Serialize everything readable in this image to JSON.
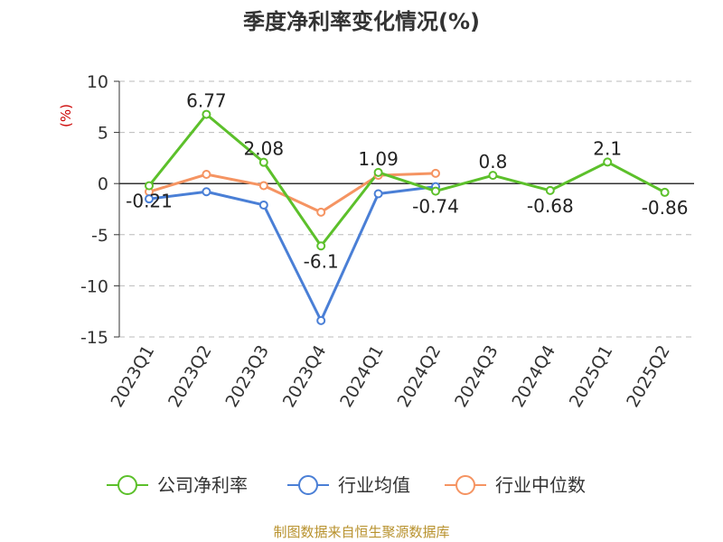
{
  "chart_data": {
    "type": "line",
    "title": "季度净利率变化情况(%)",
    "ylabel": "(%)",
    "xlabel": "",
    "ylim": [
      -15,
      10
    ],
    "yticks": [
      10,
      5,
      0,
      -5,
      -10,
      -15
    ],
    "categories": [
      "2023Q1",
      "2023Q2",
      "2023Q3",
      "2023Q4",
      "2024Q1",
      "2024Q2",
      "2024Q3",
      "2024Q4",
      "2025Q1",
      "2025Q2"
    ],
    "grid": true,
    "legend_position": "bottom",
    "series": [
      {
        "name": "公司净利率",
        "color": "#5cc02b",
        "values": [
          -0.21,
          6.77,
          2.08,
          -6.1,
          1.09,
          -0.74,
          0.8,
          -0.68,
          2.1,
          -0.86
        ],
        "labels": [
          "-0.21",
          "6.77",
          "2.08",
          "-6.1",
          "1.09",
          "-0.74",
          "0.8",
          "-0.68",
          "2.1",
          "-0.86"
        ]
      },
      {
        "name": "行业均值",
        "color": "#4a7fd6",
        "values": [
          -1.5,
          -0.8,
          -2.1,
          -13.4,
          -1.0,
          -0.3,
          null,
          null,
          null,
          null
        ]
      },
      {
        "name": "行业中位数",
        "color": "#f59462",
        "values": [
          -0.8,
          0.9,
          -0.2,
          -2.8,
          0.8,
          1.0,
          null,
          null,
          null,
          null
        ]
      }
    ],
    "source": "制图数据来自恒生聚源数据库"
  }
}
